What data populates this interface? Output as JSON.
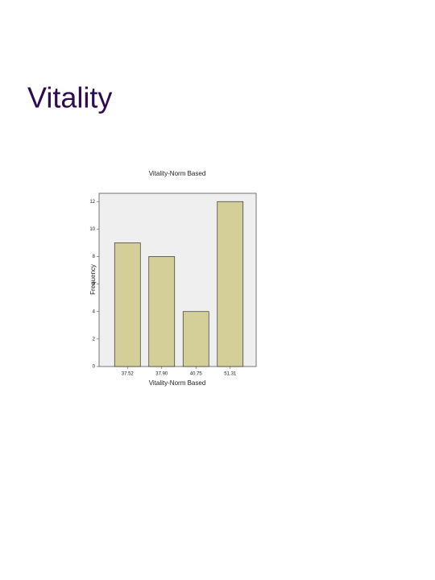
{
  "heading": "Vitality",
  "chart_data": {
    "type": "bar",
    "title": "Vitality-Norm Based",
    "x_label": "Vitality-Norm Based",
    "y_label": "Frequency",
    "categories": [
      "37.52",
      "37.90",
      "40.75",
      "51.31"
    ],
    "values": [
      9,
      8,
      4,
      12
    ],
    "color": "#d4cf99",
    "ylim": [
      0,
      12.6
    ],
    "yticks": [
      0,
      2,
      4,
      6,
      8,
      10,
      12
    ],
    "grid": false
  }
}
